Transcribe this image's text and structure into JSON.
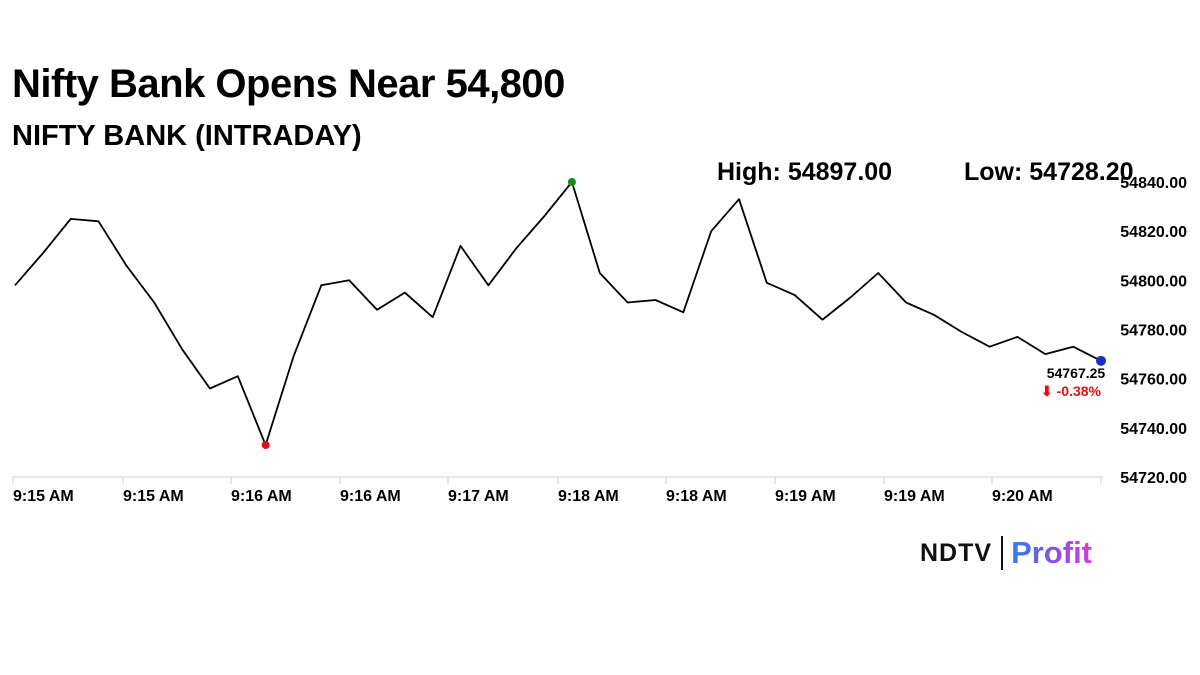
{
  "title": "Nifty Bank Opens Near 54,800",
  "subtitle": "NIFTY BANK (INTRADAY)",
  "high_label": "High: 54897.00",
  "low_label": "Low: 54728.20",
  "last_value_label": "54767.25",
  "change_label": "⬇ -0.38%",
  "logo": {
    "ndtv": "NDTV",
    "profit": "Profit"
  },
  "colors": {
    "line": "#000000",
    "high_marker": "#1a8a1a",
    "low_marker": "#e01010",
    "last_marker": "#1a2fbf",
    "change": "#e01010"
  },
  "chart_data": {
    "type": "line",
    "title": "NIFTY BANK (INTRADAY)",
    "xlabel": "",
    "ylabel": "",
    "ylim": [
      54720,
      54840
    ],
    "y_ticks": [
      "54720.00",
      "54740.00",
      "54760.00",
      "54780.00",
      "54800.00",
      "54820.00",
      "54840.00"
    ],
    "x_ticks": [
      "9:15 AM",
      "9:15 AM",
      "9:16 AM",
      "9:16 AM",
      "9:17 AM",
      "9:18 AM",
      "9:18 AM",
      "9:19 AM",
      "9:19 AM",
      "9:20 AM"
    ],
    "grid": false,
    "series": [
      {
        "values": [
          54798,
          54811,
          54825,
          54824,
          54806,
          54791,
          54772,
          54756,
          54761,
          54733,
          54769,
          54798,
          54800,
          54788,
          54795,
          54785,
          54814,
          54798,
          54813,
          54826,
          54840,
          54803,
          54791,
          54792,
          54787,
          54820,
          54833,
          54799,
          54794,
          54784,
          54793,
          54803,
          54791,
          54786,
          54779,
          54773,
          54777,
          54770,
          54773,
          54767.25
        ]
      }
    ],
    "markers": {
      "low_index": 9,
      "high_index": 20,
      "last_index": 39
    }
  }
}
